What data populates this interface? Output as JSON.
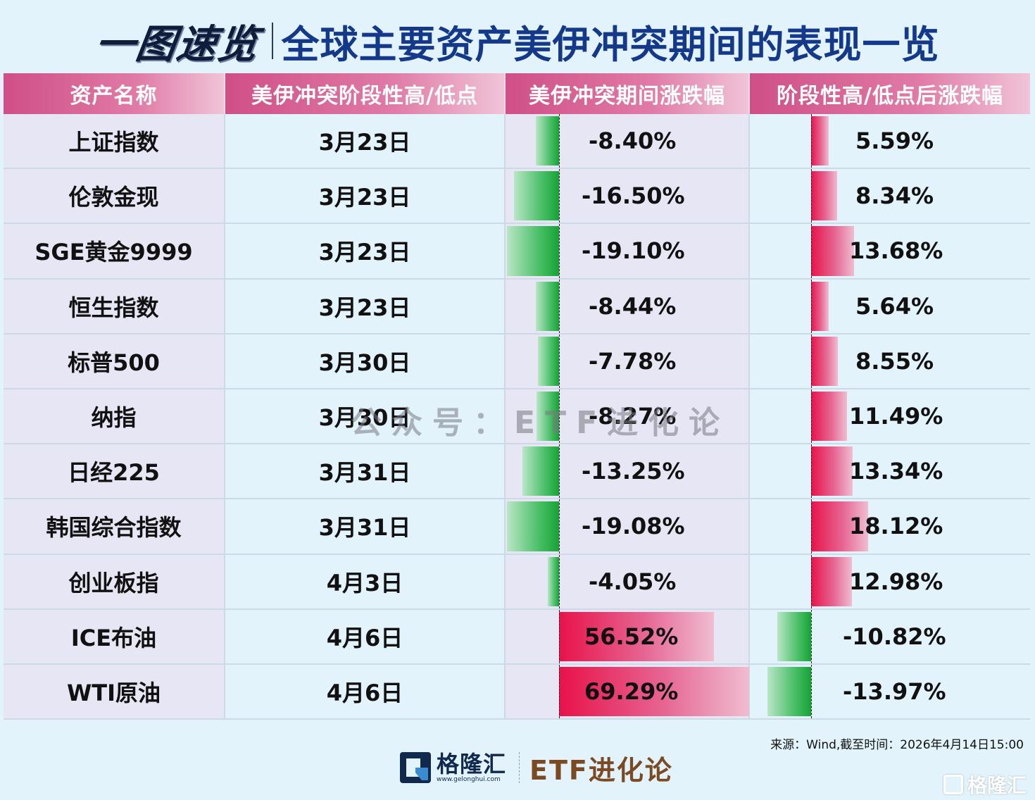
{
  "title": {
    "left": "一图速览",
    "right": "全球主要资产美伊冲突期间的表现一览"
  },
  "table": {
    "headers": [
      "资产名称",
      "美伊冲突阶段性高/低点",
      "美伊冲突期间涨跌幅",
      "阶段性高/低点后涨跌幅"
    ],
    "rows": [
      {
        "asset": "上证指数",
        "date": "3月23日",
        "during": "-8.40%",
        "after": "5.59%"
      },
      {
        "asset": "伦敦金现",
        "date": "3月23日",
        "during": "-16.50%",
        "after": "8.34%"
      },
      {
        "asset": "SGE黄金9999",
        "date": "3月23日",
        "during": "-19.10%",
        "after": "13.68%"
      },
      {
        "asset": "恒生指数",
        "date": "3月23日",
        "during": "-8.44%",
        "after": "5.64%"
      },
      {
        "asset": "标普500",
        "date": "3月30日",
        "during": "-7.78%",
        "after": "8.55%"
      },
      {
        "asset": "纳指",
        "date": "3月30日",
        "during": "-8.27%",
        "after": "11.49%"
      },
      {
        "asset": "日经225",
        "date": "3月31日",
        "during": "-13.25%",
        "after": "13.34%"
      },
      {
        "asset": "韩国综合指数",
        "date": "3月31日",
        "during": "-19.08%",
        "after": "18.12%"
      },
      {
        "asset": "创业板指",
        "date": "4月3日",
        "during": "-4.05%",
        "after": "12.98%"
      },
      {
        "asset": "ICE布油",
        "date": "4月6日",
        "during": "56.52%",
        "after": "-10.82%"
      },
      {
        "asset": "WTI原油",
        "date": "4月6日",
        "during": "69.29%",
        "after": "-13.97%"
      }
    ]
  },
  "chart_data": {
    "type": "table",
    "title": "一图速览 | 全球主要资产美伊冲突期间的表现一览",
    "columns": [
      "资产名称",
      "美伊冲突阶段性高/低点",
      "美伊冲突期间涨跌幅",
      "阶段性高/低点后涨跌幅"
    ],
    "categories": [
      "上证指数",
      "伦敦金现",
      "SGE黄金9999",
      "恒生指数",
      "标普500",
      "纳指",
      "日经225",
      "韩国综合指数",
      "创业板指",
      "ICE布油",
      "WTI原油"
    ],
    "dates": [
      "3月23日",
      "3月23日",
      "3月23日",
      "3月23日",
      "3月30日",
      "3月30日",
      "3月31日",
      "3月31日",
      "4月3日",
      "4月6日",
      "4月6日"
    ],
    "series": [
      {
        "name": "美伊冲突期间涨跌幅",
        "unit": "%",
        "values": [
          -8.4,
          -16.5,
          -19.1,
          -8.44,
          -7.78,
          -8.27,
          -13.25,
          -19.08,
          -4.05,
          56.52,
          69.29
        ]
      },
      {
        "name": "阶段性高/低点后涨跌幅",
        "unit": "%",
        "values": [
          5.59,
          8.34,
          13.68,
          5.64,
          8.55,
          11.49,
          13.34,
          18.12,
          12.98,
          -10.82,
          -13.97
        ]
      }
    ],
    "colors": {
      "positive": "#e8124a",
      "negative": "#16a335",
      "header": "#cf4f86"
    },
    "note": "来源：Wind,截至时间：2026年4月14日15:00"
  },
  "watermark": "公众号：ETF进化论",
  "source": "来源：Wind,截至时间：2026年4月14日15:00",
  "footer": {
    "brand_cn": "格隆汇",
    "brand_url": "www.gelonghui.com",
    "partner": "ETF进化论",
    "corner_logo": "格隆汇"
  }
}
